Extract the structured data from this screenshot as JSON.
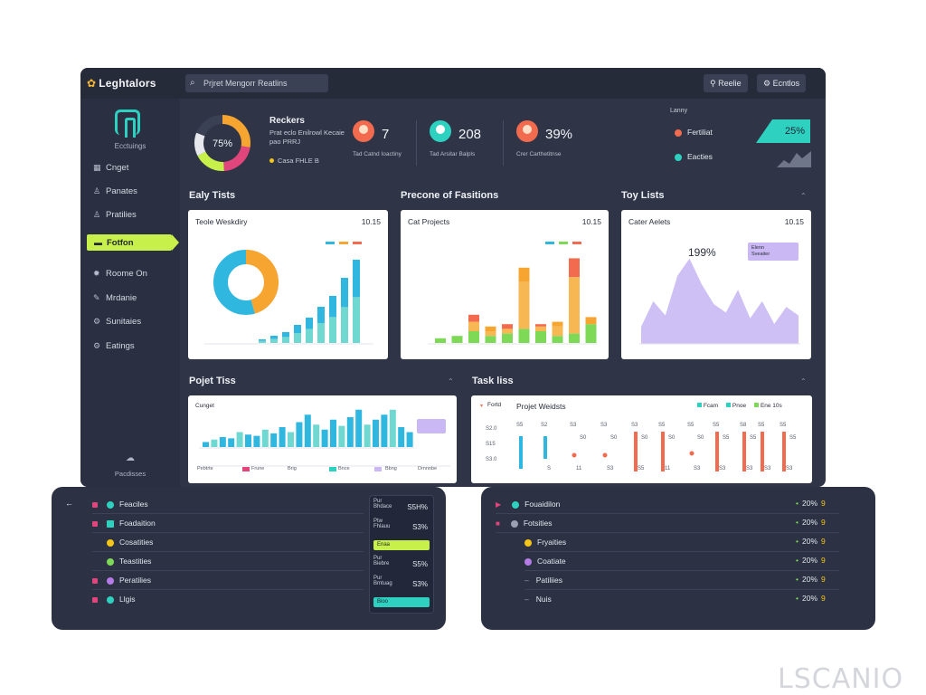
{
  "header": {
    "brand": "Leghtalors",
    "search_placeholder": "Prjret Mengorr Reatlins",
    "btn_1": "Reelie",
    "btn_2": "Ecntlos"
  },
  "sidebar": {
    "caption": "Ecctuings",
    "items": [
      {
        "label": "Cnget",
        "icon": "grid-icon"
      },
      {
        "label": "Panates",
        "icon": "person-icon"
      },
      {
        "label": "Pratilies",
        "icon": "person-icon"
      },
      {
        "label": "Fotfon",
        "icon": "folder-icon",
        "active": true
      },
      {
        "label": "Roome On",
        "icon": "gear-icon"
      },
      {
        "label": "Mrdanie",
        "icon": "pencil-icon"
      },
      {
        "label": "Sunitaies",
        "icon": "gear-icon"
      },
      {
        "label": "Eatings",
        "icon": "gear-icon"
      }
    ],
    "footer": "Pacdisses"
  },
  "summary": {
    "donut_value": "75%",
    "title": "Reckers",
    "subtitle": "Prat eclo Enilrowl Kecaie pao PRRJ",
    "legend": "Casa FHLE B",
    "kpis": [
      {
        "value": "7",
        "sub": "Tad Catnd Ioactiny"
      },
      {
        "value": "208",
        "sub": "Tad Arsitar Balpls"
      },
      {
        "value": "39%",
        "sub": "Crer Carthetitnse"
      }
    ],
    "trend": {
      "caption": "Lanny",
      "rows": [
        {
          "label": "Fertiliat",
          "color": "#f26b4f"
        },
        {
          "label": "Eacties",
          "color": "#2ed1c0"
        }
      ],
      "pct": "25%"
    }
  },
  "sections": {
    "s1": "Ealy Tists",
    "s2": "Precone of Fasitions",
    "s3": "Toy Lists",
    "s4": "Pojet Tiss",
    "s5": "Task liss"
  },
  "cards": {
    "c1": {
      "title": "Teole Weskdiry",
      "value": "10.15"
    },
    "c2": {
      "title": "Cat Projects",
      "value": "10.15"
    },
    "c3": {
      "title": "Cater Aelets",
      "value": "10.15",
      "big": "199%",
      "tag_line1": "Elenn",
      "tag_line2": "Sveaiter"
    },
    "c4": {
      "title": "Cunget",
      "legend": [
        "Pebtrte",
        "Frune",
        "Brig",
        "Bnce",
        "Bbng",
        "Drnnnbe"
      ]
    },
    "c5": {
      "title": "Projet Weidsts",
      "legend_a": "Fortd",
      "col_b": "Fcam",
      "legend_b": "Pnoe",
      "legend_c": "Ene 10s",
      "left_rows": [
        "S2.0",
        "S15",
        "S3.0"
      ],
      "col_labels": [
        "S5",
        "S2",
        "S3",
        "S3",
        "S3",
        "S5",
        "S5",
        "S5",
        "S8",
        "S5",
        "S5"
      ],
      "mid_labels": [
        "S0",
        "S0",
        "S0",
        "S0",
        "S0",
        "S5",
        "S5",
        "S5"
      ],
      "bot_labels": [
        "S",
        "11",
        "S3",
        "S5",
        "11",
        "S3",
        "S3",
        "S3",
        "S3",
        "S3"
      ]
    }
  },
  "panel_left": {
    "rows": [
      {
        "label": "Feaciles",
        "sq": "#e0457b",
        "cir": "#2ed1c0"
      },
      {
        "label": "Foadaition",
        "sq": "#e0457b",
        "cir": "#2ed1c0"
      },
      {
        "label": "Cosatities",
        "sq": "",
        "cir": "#f5c518"
      },
      {
        "label": "Teastities",
        "sq": "",
        "cir": "#7ed957"
      },
      {
        "label": "Peratilies",
        "sq": "#e0457b",
        "cir": "#b57be8"
      },
      {
        "label": "Llgis",
        "sq": "#e0457b",
        "cir": "#2ed1c0"
      }
    ],
    "mid": [
      {
        "t1": "Pur",
        "t2": "Bhdace",
        "pct": "S5H%"
      },
      {
        "t1": "Ptw",
        "t2": "Fhlauu",
        "pct": "S3%"
      },
      {
        "bar": "Enaa",
        "color": "#c8f04a"
      },
      {
        "t1": "Pur",
        "t2": "Biebre",
        "pct": "S5%"
      },
      {
        "t1": "Pur",
        "t2": "Bmtuag",
        "pct": "S3%"
      },
      {
        "bar": "Bioo",
        "color": "#2ed1c0"
      }
    ]
  },
  "panel_right": {
    "rows": [
      {
        "label": "Fouaidilon",
        "pct": "20%",
        "n": "9"
      },
      {
        "label": "Fotsities",
        "pct": "20%",
        "n": "9"
      },
      {
        "label": "Fryaities",
        "pct": "20%",
        "n": "9"
      },
      {
        "label": "Coatiate",
        "pct": "20%",
        "n": "9"
      },
      {
        "label": "Patiliies",
        "pct": "20%",
        "n": "9"
      },
      {
        "label": "Nuis",
        "pct": "20%",
        "n": "9"
      }
    ]
  },
  "watermark": "LSCANIO",
  "chart_data": [
    {
      "type": "bar",
      "name": "weekly",
      "values": [
        2,
        4,
        6,
        10,
        14,
        20,
        26,
        36,
        46
      ]
    },
    {
      "type": "bar",
      "name": "projects-stacked",
      "series": [
        {
          "name": "green",
          "values": [
            2,
            3,
            5,
            3,
            4,
            6,
            5,
            3,
            4,
            8
          ]
        },
        {
          "name": "orange",
          "values": [
            0,
            0,
            4,
            2,
            2,
            20,
            2,
            4,
            24,
            0
          ]
        },
        {
          "name": "top",
          "values": [
            0,
            0,
            3,
            2,
            2,
            6,
            1,
            2,
            8,
            3
          ]
        }
      ]
    },
    {
      "type": "area",
      "name": "alerts",
      "values": [
        12,
        30,
        20,
        48,
        60,
        42,
        28,
        22,
        38,
        18,
        30,
        14,
        26,
        20
      ]
    },
    {
      "type": "bar",
      "name": "budget",
      "values": [
        4,
        6,
        8,
        7,
        12,
        10,
        9,
        14,
        11,
        16,
        12,
        20,
        26,
        18,
        14,
        22,
        17,
        24,
        30,
        18,
        22,
        26,
        30,
        16,
        12
      ]
    }
  ]
}
